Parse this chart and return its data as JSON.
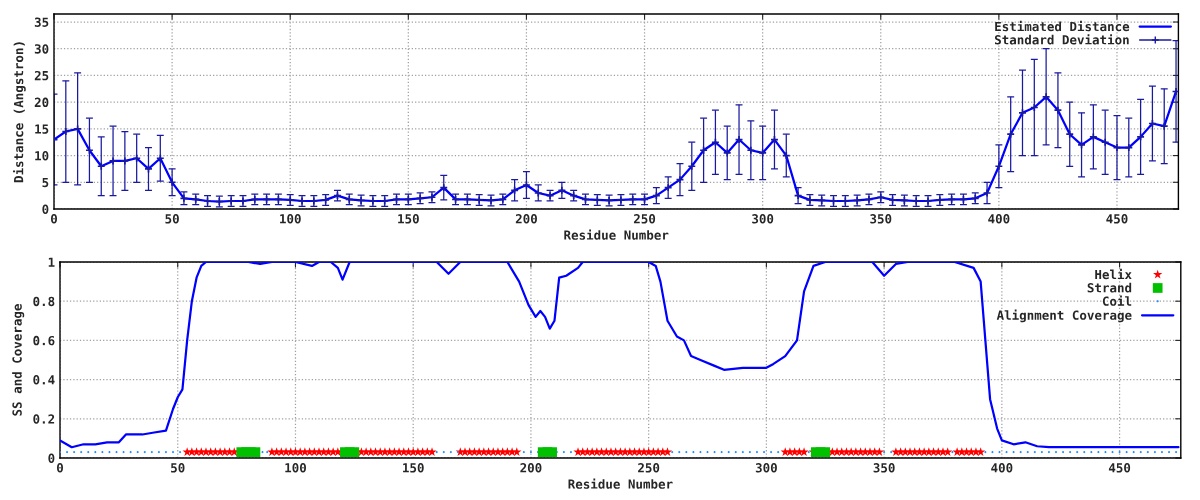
{
  "chart_data": [
    {
      "type": "line",
      "xlabel": "Residue Number",
      "ylabel": "Distance (Angstron)",
      "x": [
        0,
        5,
        10,
        15,
        20,
        25,
        30,
        35,
        40,
        45,
        50,
        55,
        60,
        65,
        70,
        75,
        80,
        85,
        90,
        95,
        100,
        105,
        110,
        115,
        120,
        125,
        130,
        135,
        140,
        145,
        150,
        155,
        160,
        165,
        170,
        175,
        180,
        185,
        190,
        195,
        200,
        205,
        210,
        215,
        220,
        225,
        230,
        235,
        240,
        245,
        250,
        255,
        260,
        265,
        270,
        275,
        280,
        285,
        290,
        295,
        300,
        305,
        310,
        315,
        320,
        325,
        330,
        335,
        340,
        345,
        350,
        355,
        360,
        365,
        370,
        375,
        380,
        385,
        390,
        395,
        400,
        405,
        410,
        415,
        420,
        425,
        430,
        435,
        440,
        445,
        450,
        455,
        460,
        465,
        470,
        475
      ],
      "xlim": [
        0,
        476
      ],
      "xticks": [
        0,
        50,
        100,
        150,
        200,
        250,
        300,
        350,
        400,
        450
      ],
      "ylim": [
        0,
        36.5
      ],
      "yticks": [
        0,
        5,
        10,
        15,
        20,
        25,
        30,
        35
      ],
      "grid": true,
      "legend": "top right",
      "series": [
        {
          "name": "Estimated Distance",
          "color": "#0000ff",
          "marker": "none",
          "values": [
            13,
            14.5,
            15,
            11,
            8,
            9,
            9,
            9.5,
            7.5,
            9.5,
            5,
            2,
            1.8,
            1.5,
            1.4,
            1.5,
            1.5,
            1.8,
            1.8,
            1.8,
            1.7,
            1.5,
            1.5,
            1.7,
            2.5,
            1.8,
            1.6,
            1.5,
            1.5,
            1.8,
            1.8,
            2,
            2.2,
            4,
            1.8,
            1.8,
            1.7,
            1.6,
            1.8,
            3.5,
            4.5,
            3,
            2.5,
            3.5,
            2.5,
            1.8,
            1.7,
            1.6,
            1.7,
            1.8,
            1.8,
            2.5,
            4,
            5.5,
            8,
            11,
            12.5,
            10.5,
            13,
            11,
            10.5,
            13,
            10,
            2.5,
            1.7,
            1.6,
            1.5,
            1.5,
            1.6,
            1.8,
            2.2,
            1.7,
            1.6,
            1.5,
            1.5,
            1.7,
            1.8,
            1.8,
            2,
            3,
            8,
            14,
            18,
            19,
            21,
            18.5,
            14,
            12,
            13.5,
            12.5,
            11.5,
            11.5,
            13.5,
            16,
            15.5,
            22
          ]
        },
        {
          "name": "Standard Deviation",
          "type": "scatter",
          "color": "#1a1aa0",
          "marker": "cross",
          "values": [
            13,
            14.5,
            15,
            11,
            8,
            9,
            9,
            9.5,
            7.5,
            9.5,
            5,
            2,
            1.8,
            1.5,
            1.4,
            1.5,
            1.5,
            1.8,
            1.8,
            1.8,
            1.7,
            1.5,
            1.5,
            1.7,
            2.5,
            1.8,
            1.6,
            1.5,
            1.5,
            1.8,
            1.8,
            2,
            2.2,
            4,
            1.8,
            1.8,
            1.7,
            1.6,
            1.8,
            3.5,
            4.5,
            3,
            2.5,
            3.5,
            2.5,
            1.8,
            1.7,
            1.6,
            1.7,
            1.8,
            1.8,
            2.5,
            4,
            5.5,
            8,
            11,
            12.5,
            10.5,
            13,
            11,
            10.5,
            13,
            10,
            2.5,
            1.7,
            1.6,
            1.5,
            1.5,
            1.6,
            1.8,
            2.2,
            1.7,
            1.6,
            1.5,
            1.5,
            1.7,
            1.8,
            1.8,
            2,
            3,
            8,
            14,
            18,
            19,
            21,
            18.5,
            14,
            12,
            13.5,
            12.5,
            11.5,
            11.5,
            13.5,
            16,
            15.5,
            22
          ],
          "errors": [
            8.5,
            9.5,
            10.5,
            6,
            5.5,
            6.5,
            5.5,
            4.5,
            4,
            4.3,
            2.5,
            1.2,
            1,
            1,
            1,
            1,
            1,
            1,
            1,
            1,
            1,
            1,
            1,
            1,
            1,
            1,
            1,
            1,
            1,
            1,
            1,
            1,
            1,
            2.3,
            1,
            1,
            1,
            1,
            1,
            2,
            2.5,
            1.5,
            1,
            1.5,
            1,
            1,
            1,
            1,
            1,
            1,
            1,
            1.5,
            2,
            3,
            4.5,
            6,
            6,
            5,
            6.5,
            5.5,
            5,
            5.5,
            4,
            1.5,
            1,
            1,
            1,
            1,
            1,
            1,
            1,
            1,
            1,
            1,
            1,
            1,
            1,
            1,
            1,
            2,
            4,
            7,
            8,
            9,
            9,
            7,
            6,
            6,
            6,
            6,
            6,
            5.5,
            7,
            7,
            7,
            9.5
          ]
        }
      ]
    },
    {
      "type": "line",
      "xlabel": "Residue Number",
      "ylabel": "SS and Coverage",
      "xlim": [
        0,
        476
      ],
      "xticks": [
        0,
        50,
        100,
        150,
        200,
        250,
        300,
        350,
        400,
        450
      ],
      "ylim": [
        0,
        1
      ],
      "yticks": [
        0,
        0.2,
        0.4,
        0.6,
        0.8,
        1
      ],
      "grid": true,
      "legend": "top right",
      "series": [
        {
          "name": "Helix",
          "type": "scatter",
          "color": "#ff0000",
          "marker": "star",
          "x": [
            54,
            56,
            58,
            60,
            62,
            64,
            66,
            68,
            70,
            72,
            74,
            76,
            90,
            92,
            94,
            96,
            98,
            100,
            102,
            104,
            106,
            108,
            110,
            112,
            114,
            116,
            118,
            120,
            126,
            128,
            130,
            132,
            134,
            136,
            138,
            140,
            142,
            144,
            146,
            148,
            150,
            152,
            154,
            156,
            158,
            170,
            172,
            174,
            176,
            178,
            180,
            182,
            184,
            186,
            188,
            190,
            192,
            194,
            220,
            222,
            224,
            226,
            228,
            230,
            232,
            234,
            236,
            238,
            240,
            242,
            244,
            246,
            248,
            250,
            252,
            254,
            256,
            258,
            308,
            310,
            312,
            314,
            316,
            320,
            326,
            328,
            330,
            332,
            334,
            336,
            338,
            340,
            342,
            344,
            346,
            348,
            355,
            357,
            359,
            361,
            363,
            365,
            367,
            369,
            371,
            373,
            375,
            377,
            381,
            383,
            385,
            387,
            389,
            391
          ],
          "values": [
            0.03,
            0.03,
            0.03,
            0.03,
            0.03,
            0.03,
            0.03,
            0.03,
            0.03,
            0.03,
            0.03,
            0.03,
            0.03,
            0.03,
            0.03,
            0.03,
            0.03,
            0.03,
            0.03,
            0.03,
            0.03,
            0.03,
            0.03,
            0.03,
            0.03,
            0.03,
            0.03,
            0.03,
            0.03,
            0.03,
            0.03,
            0.03,
            0.03,
            0.03,
            0.03,
            0.03,
            0.03,
            0.03,
            0.03,
            0.03,
            0.03,
            0.03,
            0.03,
            0.03,
            0.03,
            0.03,
            0.03,
            0.03,
            0.03,
            0.03,
            0.03,
            0.03,
            0.03,
            0.03,
            0.03,
            0.03,
            0.03,
            0.03,
            0.03,
            0.03,
            0.03,
            0.03,
            0.03,
            0.03,
            0.03,
            0.03,
            0.03,
            0.03,
            0.03,
            0.03,
            0.03,
            0.03,
            0.03,
            0.03,
            0.03,
            0.03,
            0.03,
            0.03,
            0.03,
            0.03,
            0.03,
            0.03,
            0.03,
            0.03,
            0.03,
            0.03,
            0.03,
            0.03,
            0.03,
            0.03,
            0.03,
            0.03,
            0.03,
            0.03,
            0.03,
            0.03,
            0.03,
            0.03,
            0.03,
            0.03,
            0.03,
            0.03,
            0.03,
            0.03,
            0.03,
            0.03,
            0.03,
            0.03,
            0.03,
            0.03,
            0.03,
            0.03,
            0.03,
            0.03
          ]
        },
        {
          "name": "Strand",
          "type": "scatter",
          "color": "#00c000",
          "marker": "square",
          "x": [
            77,
            79,
            81,
            83,
            121,
            123,
            125,
            205,
            207,
            209,
            321,
            323,
            325
          ],
          "values": [
            0.03,
            0.03,
            0.03,
            0.03,
            0.03,
            0.03,
            0.03,
            0.03,
            0.03,
            0.03,
            0.03,
            0.03,
            0.03
          ]
        },
        {
          "name": "Coil",
          "type": "scatter",
          "color": "#1e90ff",
          "marker": "circle",
          "x": [
            0,
            3,
            6,
            9,
            12,
            15,
            18,
            21,
            24,
            27,
            30,
            33,
            36,
            39,
            42,
            45,
            48,
            51,
            86,
            88,
            160,
            163,
            166,
            169,
            197,
            200,
            203,
            211,
            214,
            217,
            260,
            263,
            266,
            269,
            272,
            275,
            278,
            281,
            284,
            287,
            290,
            293,
            296,
            299,
            302,
            305,
            318,
            350,
            353,
            379,
            393,
            396,
            399,
            402,
            405,
            408,
            411,
            414,
            417,
            420,
            423,
            426,
            429,
            432,
            435,
            438,
            441,
            444,
            447,
            450,
            453,
            456,
            459,
            462,
            465,
            468,
            471,
            474
          ],
          "values": [
            0.03,
            0.03,
            0.03,
            0.03,
            0.03,
            0.03,
            0.03,
            0.03,
            0.03,
            0.03,
            0.03,
            0.03,
            0.03,
            0.03,
            0.03,
            0.03,
            0.03,
            0.03,
            0.03,
            0.03,
            0.03,
            0.03,
            0.03,
            0.03,
            0.03,
            0.03,
            0.03,
            0.03,
            0.03,
            0.03,
            0.03,
            0.03,
            0.03,
            0.03,
            0.03,
            0.03,
            0.03,
            0.03,
            0.03,
            0.03,
            0.03,
            0.03,
            0.03,
            0.03,
            0.03,
            0.03,
            0.03,
            0.03,
            0.03,
            0.03,
            0.03,
            0.03,
            0.03,
            0.03,
            0.03,
            0.03,
            0.03,
            0.03,
            0.03,
            0.03,
            0.03,
            0.03,
            0.03,
            0.03,
            0.03,
            0.03,
            0.03,
            0.03,
            0.03,
            0.03,
            0.03,
            0.03,
            0.03,
            0.03,
            0.03,
            0.03,
            0.03,
            0.03
          ]
        },
        {
          "name": "Alignment Coverage",
          "color": "#0000ff",
          "marker": "none",
          "x": [
            0,
            5,
            10,
            15,
            20,
            25,
            28,
            30,
            35,
            40,
            45,
            48,
            50,
            52,
            54,
            56,
            58,
            60,
            62,
            70,
            80,
            85,
            90,
            100,
            107,
            110,
            115,
            118,
            120,
            123,
            130,
            160,
            165,
            170,
            190,
            195,
            199,
            202,
            204,
            206,
            208,
            210,
            212,
            215,
            220,
            222,
            240,
            250,
            253,
            255,
            258,
            262,
            265,
            268,
            272,
            278,
            282,
            290,
            300,
            303,
            308,
            313,
            316,
            320,
            325,
            345,
            350,
            355,
            360,
            380,
            388,
            391,
            393,
            395,
            398,
            400,
            405,
            410,
            415,
            420,
            475
          ],
          "values": [
            0.09,
            0.055,
            0.07,
            0.07,
            0.08,
            0.08,
            0.12,
            0.12,
            0.12,
            0.13,
            0.14,
            0.25,
            0.31,
            0.35,
            0.6,
            0.8,
            0.92,
            0.98,
            1,
            1,
            1,
            0.99,
            1,
            1,
            0.98,
            1,
            1,
            0.97,
            0.91,
            1,
            1,
            1,
            0.94,
            1,
            1,
            0.9,
            0.78,
            0.72,
            0.75,
            0.72,
            0.66,
            0.7,
            0.92,
            0.93,
            0.97,
            1,
            1,
            1,
            0.98,
            0.9,
            0.7,
            0.62,
            0.6,
            0.52,
            0.5,
            0.47,
            0.45,
            0.46,
            0.46,
            0.48,
            0.52,
            0.6,
            0.85,
            0.98,
            1,
            1,
            0.93,
            0.99,
            1,
            1,
            0.97,
            0.9,
            0.6,
            0.3,
            0.15,
            0.09,
            0.07,
            0.08,
            0.06,
            0.055,
            0.055
          ]
        }
      ]
    }
  ]
}
